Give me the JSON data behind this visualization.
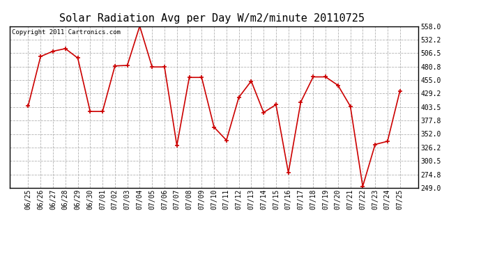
{
  "title": "Solar Radiation Avg per Day W/m2/minute 20110725",
  "copyright_text": "Copyright 2011 Cartronics.com",
  "dates": [
    "06/25",
    "06/26",
    "06/27",
    "06/28",
    "06/29",
    "06/30",
    "07/01",
    "07/02",
    "07/03",
    "07/04",
    "07/05",
    "07/06",
    "07/07",
    "07/08",
    "07/09",
    "07/10",
    "07/11",
    "07/12",
    "07/13",
    "07/14",
    "07/15",
    "07/16",
    "07/17",
    "07/18",
    "07/19",
    "07/20",
    "07/21",
    "07/22",
    "07/23",
    "07/24",
    "07/25"
  ],
  "values": [
    406,
    500,
    510,
    515,
    497,
    395,
    395,
    482,
    483,
    558,
    480,
    480,
    330,
    460,
    460,
    365,
    340,
    422,
    453,
    393,
    408,
    278,
    413,
    461,
    461,
    445,
    405,
    252,
    332,
    338,
    434
  ],
  "line_color": "#cc0000",
  "marker_color": "#cc0000",
  "bg_color": "#ffffff",
  "plot_bg_color": "#ffffff",
  "grid_color": "#aaaaaa",
  "y_min": 249.0,
  "y_max": 558.0,
  "y_ticks": [
    249.0,
    274.8,
    300.5,
    326.2,
    352.0,
    377.8,
    403.5,
    429.2,
    455.0,
    480.8,
    506.5,
    532.2,
    558.0
  ],
  "title_fontsize": 11,
  "tick_fontsize": 7,
  "copyright_fontsize": 6.5
}
